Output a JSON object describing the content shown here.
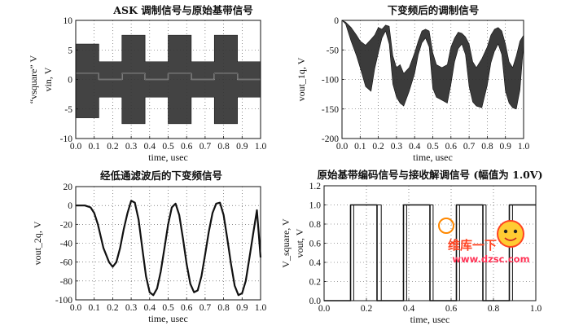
{
  "chart_data": [
    {
      "type": "line",
      "title": "ASK 调制信号与原始基带信号",
      "xlabel": "time, usec",
      "ylabels": [
        "“vsquare” V",
        "vin, V"
      ],
      "xlim": [
        0.0,
        1.0
      ],
      "ylim": [
        -10,
        10
      ],
      "xticks": [
        "0.0",
        "0.1",
        "0.2",
        "0.3",
        "0.4",
        "0.5",
        "0.6",
        "0.7",
        "0.8",
        "0.9",
        "1.0"
      ],
      "yticks": [
        "-10",
        "-5",
        "0",
        "5",
        "10"
      ],
      "grid": true,
      "series": [
        {
          "role": "modulated-envelope",
          "x": [
            0.0,
            0.125,
            0.125,
            0.25,
            0.25,
            0.375,
            0.375,
            0.5,
            0.5,
            0.625,
            0.625,
            0.75,
            0.75,
            0.875,
            0.875,
            1.0
          ],
          "upper": [
            6,
            6,
            3,
            3,
            7.5,
            7.5,
            3,
            3,
            7.5,
            7.5,
            3,
            3,
            7.5,
            7.5,
            3,
            3
          ],
          "lower": [
            -6.5,
            -6.5,
            -3,
            -3,
            -7.5,
            -7.5,
            -3,
            -3,
            -7.5,
            -7.5,
            -3,
            -3,
            -7.5,
            -7.5,
            -3,
            -3
          ]
        },
        {
          "role": "baseband",
          "x": [
            0.0,
            0.125,
            0.125,
            0.25,
            0.25,
            0.375,
            0.375,
            0.5,
            0.5,
            0.625,
            0.625,
            0.75,
            0.75,
            0.875,
            0.875,
            1.0
          ],
          "y": [
            1,
            1,
            0,
            0,
            1,
            1,
            0,
            0,
            1,
            1,
            0,
            0,
            1,
            1,
            0,
            0
          ]
        }
      ]
    },
    {
      "type": "line",
      "title": "下变频后的调制信号",
      "xlabel": "time, usec",
      "ylabels": [
        "vout_1q, V"
      ],
      "xlim": [
        0.0,
        1.0
      ],
      "ylim": [
        -200,
        0
      ],
      "xticks": [
        "0.0",
        "0.1",
        "0.2",
        "0.3",
        "0.4",
        "0.5",
        "0.6",
        "0.7",
        "0.8",
        "0.9",
        "1.0"
      ],
      "yticks": [
        "-200",
        "-150",
        "-100",
        "-50",
        "0"
      ],
      "grid": true,
      "series": [
        {
          "role": "envelope",
          "x": [
            0.0,
            0.02,
            0.05,
            0.08,
            0.1,
            0.13,
            0.16,
            0.18,
            0.2,
            0.22,
            0.24,
            0.26,
            0.28,
            0.3,
            0.32,
            0.34,
            0.37,
            0.4,
            0.42,
            0.44,
            0.46,
            0.48,
            0.5,
            0.52,
            0.55,
            0.58,
            0.6,
            0.62,
            0.64,
            0.66,
            0.68,
            0.7,
            0.72,
            0.74,
            0.77,
            0.8,
            0.82,
            0.84,
            0.86,
            0.88,
            0.9,
            0.92,
            0.94,
            0.96,
            0.98,
            1.0
          ],
          "upper": [
            0,
            -3,
            -12,
            -25,
            -35,
            -42,
            -32,
            -25,
            -12,
            -15,
            -8,
            -10,
            -60,
            -80,
            -75,
            -90,
            -80,
            -55,
            -35,
            -18,
            -15,
            -18,
            -55,
            -75,
            -80,
            -75,
            -45,
            -30,
            -20,
            -22,
            -28,
            -40,
            -70,
            -80,
            -65,
            -45,
            -25,
            -15,
            -12,
            -18,
            -40,
            -70,
            -80,
            -60,
            -35,
            -25
          ],
          "lower": [
            0,
            -6,
            -35,
            -60,
            -80,
            -112,
            -120,
            -82,
            -55,
            -30,
            -18,
            -40,
            -108,
            -130,
            -140,
            -145,
            -120,
            -90,
            -58,
            -38,
            -30,
            -45,
            -115,
            -130,
            -135,
            -140,
            -108,
            -70,
            -48,
            -40,
            -58,
            -112,
            -138,
            -145,
            -148,
            -110,
            -72,
            -52,
            -40,
            -58,
            -120,
            -140,
            -148,
            -150,
            -118,
            -40
          ]
        }
      ]
    },
    {
      "type": "line",
      "title": "经低通滤波后的下变频信号",
      "xlabel": "time, usec",
      "ylabels": [
        "vout_2q, V"
      ],
      "xlim": [
        0.0,
        1.0
      ],
      "ylim": [
        -100,
        20
      ],
      "xticks": [
        "0.0",
        "0.1",
        "0.2",
        "0.3",
        "0.4",
        "0.5",
        "0.6",
        "0.7",
        "0.8",
        "0.9",
        "1.0"
      ],
      "yticks": [
        "-100",
        "-80",
        "-60",
        "-40",
        "-20",
        "0",
        "20"
      ],
      "grid": true,
      "series": [
        {
          "role": "filtered",
          "x": [
            0.0,
            0.05,
            0.08,
            0.1,
            0.12,
            0.15,
            0.18,
            0.2,
            0.22,
            0.24,
            0.26,
            0.28,
            0.3,
            0.32,
            0.34,
            0.36,
            0.38,
            0.4,
            0.42,
            0.44,
            0.46,
            0.48,
            0.5,
            0.52,
            0.54,
            0.56,
            0.58,
            0.6,
            0.62,
            0.64,
            0.66,
            0.68,
            0.7,
            0.72,
            0.74,
            0.76,
            0.78,
            0.8,
            0.82,
            0.84,
            0.86,
            0.88,
            0.9,
            0.92,
            0.94,
            0.96,
            0.98,
            1.0
          ],
          "y": [
            0,
            0,
            -2,
            -8,
            -20,
            -45,
            -60,
            -65,
            -60,
            -45,
            -25,
            -8,
            5,
            3,
            -15,
            -45,
            -75,
            -92,
            -95,
            -88,
            -70,
            -45,
            -20,
            -2,
            2,
            -10,
            -35,
            -62,
            -83,
            -92,
            -90,
            -75,
            -52,
            -28,
            -8,
            2,
            3,
            -10,
            -35,
            -62,
            -85,
            -95,
            -93,
            -80,
            -55,
            -30,
            -5,
            -55
          ]
        }
      ]
    },
    {
      "type": "line",
      "title": "原始基带编码信号与接收解调信号 (幅值为 1.0V)",
      "xlabel": "time, usec",
      "ylabels": [
        "V_square, V",
        "vout, V"
      ],
      "xlim": [
        0.0,
        1.0
      ],
      "ylim": [
        0.0,
        1.2
      ],
      "xticks": [
        "0.0",
        "0.2",
        "0.4",
        "0.6",
        "0.8",
        "1.0"
      ],
      "yticks": [
        "0.0",
        "0.2",
        "0.4",
        "0.6",
        "0.8",
        "1.0",
        "1.2"
      ],
      "grid": true,
      "series": [
        {
          "role": "original-square",
          "x": [
            0.0,
            0.125,
            0.125,
            0.25,
            0.25,
            0.375,
            0.375,
            0.5,
            0.5,
            0.625,
            0.625,
            0.75,
            0.75,
            0.875,
            0.875,
            1.0
          ],
          "y": [
            0,
            0,
            1,
            1,
            0,
            0,
            1,
            1,
            0,
            0,
            1,
            1,
            0,
            0,
            1,
            1
          ]
        },
        {
          "role": "demodulated",
          "x": [
            0.0,
            0.14,
            0.14,
            0.27,
            0.27,
            0.39,
            0.39,
            0.515,
            0.515,
            0.64,
            0.64,
            0.765,
            0.765,
            0.89,
            0.89,
            1.0
          ],
          "y": [
            0,
            0,
            1,
            1,
            0,
            0,
            1,
            1,
            0,
            0,
            1,
            1,
            0,
            0,
            1,
            1
          ]
        }
      ]
    }
  ],
  "watermark": {
    "logo_text": "维库一下",
    "url_text": "www.dzsc.com",
    "color": "#ff4422"
  }
}
